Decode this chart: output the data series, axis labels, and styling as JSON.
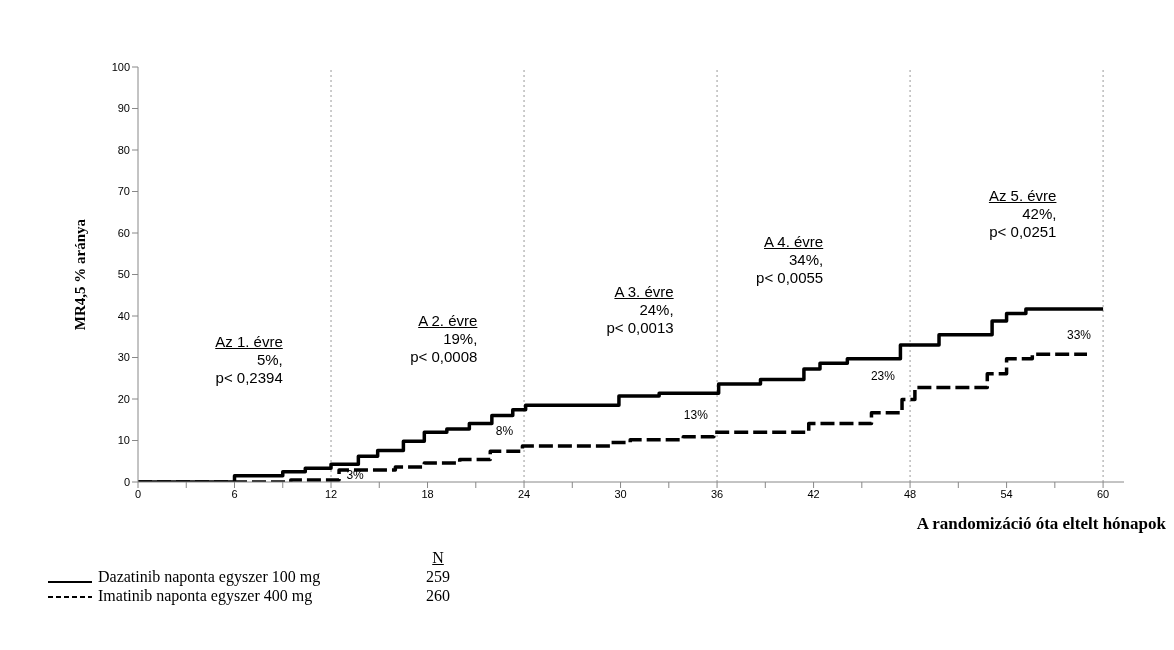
{
  "chart_data": {
    "type": "step",
    "xlabel": "A randomizáció óta eltelt hónapok",
    "ylabel": "MR4,5 % aránya",
    "xlim": [
      0,
      61.3
    ],
    "ylim": [
      0,
      100
    ],
    "xticks": [
      0,
      {
        "value": 3,
        "label": null
      },
      6,
      {
        "value": 9,
        "label": null
      },
      12,
      {
        "value": 15,
        "label": null
      },
      18,
      {
        "value": 21,
        "label": null
      },
      24,
      {
        "value": 27,
        "label": null
      },
      30,
      {
        "value": 33,
        "label": null
      },
      36,
      {
        "value": 39,
        "label": null
      },
      42,
      {
        "value": 45,
        "label": null
      },
      48,
      {
        "value": 51,
        "label": null
      },
      54,
      {
        "value": 57,
        "label": null
      },
      60
    ],
    "yticks": [
      0,
      10,
      20,
      30,
      40,
      50,
      60,
      70,
      80,
      90,
      100
    ],
    "grid": false,
    "legend": "bottom left",
    "marker": "none",
    "series": [
      {
        "name": "Dazatinib naponta egyszer 100 mg",
        "color": "#000000",
        "line_style": "solid",
        "x": [
          0,
          5.9,
          6,
          9,
          10.4,
          12,
          13.7,
          14.9,
          16.5,
          17.8,
          19.2,
          20.6,
          22,
          23.3,
          24.1,
          29.9,
          32.4,
          36.1,
          38.7,
          41.4,
          42.4,
          44.1,
          47.4,
          49.8,
          53.1,
          54,
          55.2,
          60
        ],
        "values": [
          0,
          0,
          1.5,
          2.5,
          3.3,
          4.3,
          6.2,
          7.6,
          9.8,
          12,
          12.8,
          14.1,
          16,
          17.4,
          18.5,
          20.7,
          21.4,
          23.6,
          24.7,
          27.2,
          28.6,
          29.7,
          33,
          35.5,
          38.8,
          40.6,
          41.7,
          41.7
        ]
      },
      {
        "name": "Imatinib naponta egyszer 400 mg",
        "color": "#000000",
        "line_style": "dashed",
        "x": [
          0,
          9.5,
          12.5,
          16,
          17.8,
          20,
          21.9,
          23.9,
          29.4,
          30.6,
          33.9,
          35.8,
          41.7,
          45.6,
          47.5,
          48.3,
          52.8,
          54,
          55.6,
          59
        ],
        "values": [
          0,
          0.5,
          2.9,
          3.6,
          4.6,
          5.4,
          7.4,
          8.7,
          9.5,
          10.2,
          10.9,
          12,
          14.1,
          16.7,
          19.9,
          22.8,
          26.1,
          29.7,
          30.8,
          30.8
        ]
      }
    ],
    "ref_lines": [
      {
        "axis": "x",
        "value": 12,
        "color": "#999999",
        "line_style": "dotted"
      },
      {
        "axis": "x",
        "value": 24,
        "color": "#999999",
        "line_style": "dotted"
      },
      {
        "axis": "x",
        "value": 36,
        "color": "#999999",
        "line_style": "dotted"
      },
      {
        "axis": "x",
        "value": 48,
        "color": "#999999",
        "line_style": "dotted"
      },
      {
        "axis": "x",
        "value": 60,
        "color": "#999999",
        "line_style": "dotted"
      }
    ],
    "annotations": [
      "Az 1. évre\n5%,\np< 0,2394",
      "A 2. évre\n19%,\np< 0,0008",
      "A 3. évre\n24%,\np< 0,0013",
      "A 4. évre\n34%,\np< 0,0055",
      "Az 5. évre\n42%,\np< 0,0251",
      {
        "text": "3%",
        "x": 12.5,
        "y": 2.9
      },
      {
        "text": "8%",
        "x": 23.9,
        "y": 8.7
      },
      {
        "text": "13%",
        "x": 35.8,
        "y": 12
      },
      {
        "text": "23%",
        "x": 48.3,
        "y": 22.8
      },
      {
        "text": "33%",
        "x": 59,
        "y": 30.8
      },
      "N",
      "259",
      "260"
    ]
  }
}
